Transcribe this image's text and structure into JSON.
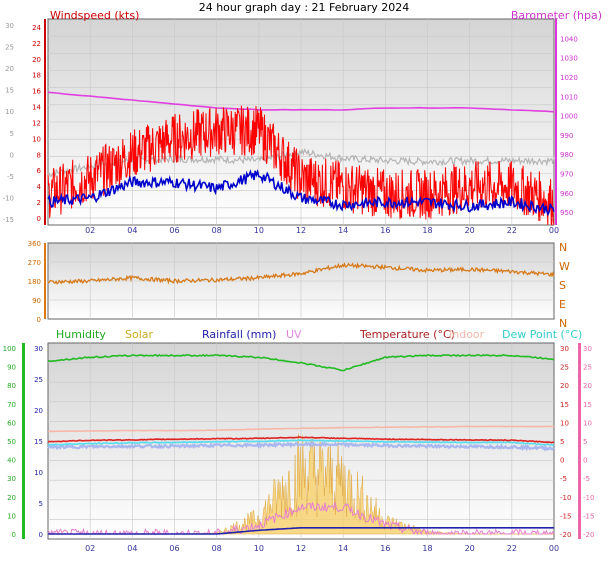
{
  "page_title": "24 hour graph day : 21 February 2024",
  "colors": {
    "wind": "#ff0000",
    "wind_avg": "#0000cc",
    "gust_shadow": "#b4b4b4",
    "baro": "#e040e0",
    "dir": "#d77a1a",
    "humidity": "#22bb22",
    "temp": "#dd2222",
    "indoor": "#f5b7a8",
    "dew": "#55ddee",
    "temp_band": "#aab8f0",
    "rain": "#2222aa",
    "solar": "#f5cf6a",
    "uv": "#e77fd0"
  },
  "chart_data": [
    {
      "type": "line",
      "title": "Windspeed (kts)",
      "y2label": "Barometer (hpa)",
      "x_ticks": [
        "02",
        "04",
        "06",
        "08",
        "10",
        "12",
        "14",
        "16",
        "18",
        "20",
        "22",
        "00"
      ],
      "y_left_outer_ticks": [
        "30",
        "25",
        "20",
        "15",
        "10",
        "5",
        "0",
        "-5",
        "-10",
        "-15"
      ],
      "y_left_ticks": [
        "24",
        "22",
        "20",
        "18",
        "16",
        "14",
        "12",
        "10",
        "8",
        "6",
        "4",
        "2",
        "0"
      ],
      "y_right_ticks": [
        "1040",
        "1030",
        "1020",
        "1010",
        "1000",
        "990",
        "980",
        "970",
        "960",
        "950"
      ],
      "ylim": [
        0,
        25
      ],
      "y2lim": [
        947,
        1050
      ],
      "x": [
        0,
        2,
        4,
        6,
        8,
        10,
        12,
        14,
        16,
        18,
        20,
        22,
        24
      ],
      "series": [
        {
          "key": "wind",
          "values": [
            3,
            5,
            8,
            10,
            11,
            11,
            5,
            4,
            3,
            3,
            4,
            4,
            2
          ]
        },
        {
          "key": "wind_avg",
          "values": [
            2,
            2.5,
            4.5,
            4.5,
            3.7,
            5.5,
            2.5,
            1.7,
            2,
            2,
            1.5,
            2,
            1
          ]
        },
        {
          "key": "gust_shadow",
          "values": [
            5.5,
            6.5,
            7.3,
            7.4,
            7.4,
            7.2,
            8.3,
            7.5,
            7.2,
            7.1,
            7.2,
            7.2,
            7.2
          ]
        },
        {
          "key": "baro",
          "values": [
            1012,
            1010,
            1008,
            1006,
            1004,
            1003,
            1003,
            1003,
            1004,
            1004,
            1004,
            1003,
            1002
          ]
        }
      ]
    },
    {
      "type": "line",
      "y_left_ticks": [
        "360",
        "270",
        "180",
        "90",
        "0"
      ],
      "compass_labels": [
        "N",
        "W",
        "S",
        "E",
        "N"
      ],
      "ylim": [
        0,
        360
      ],
      "x": [
        0,
        2,
        4,
        6,
        8,
        10,
        12,
        14,
        16,
        18,
        20,
        22,
        24
      ],
      "series": [
        {
          "key": "dir",
          "values": [
            175,
            180,
            195,
            180,
            185,
            195,
            215,
            255,
            245,
            230,
            235,
            225,
            210
          ]
        }
      ]
    },
    {
      "type": "line",
      "legend": [
        "Humidity",
        "Solar",
        "Rainfall (mm)",
        "UV",
        "Temperature (°C)",
        "Indoor",
        "Dew Point (°C)"
      ],
      "x_ticks": [
        "02",
        "04",
        "06",
        "08",
        "10",
        "12",
        "14",
        "16",
        "18",
        "20",
        "22",
        "00"
      ],
      "y_humidity_ticks": [
        "100",
        "90",
        "80",
        "70",
        "60",
        "50",
        "40",
        "30",
        "20",
        "10",
        "0"
      ],
      "y_rain_ticks": [
        "30",
        "25",
        "20",
        "15",
        "10",
        "5",
        "0"
      ],
      "y_temp_ticks": [
        "30",
        "25",
        "20",
        "15",
        "10",
        "5",
        "0",
        "-5",
        "-10",
        "-15",
        "-20"
      ],
      "templim": [
        -20,
        30
      ],
      "x": [
        0,
        2,
        4,
        6,
        8,
        10,
        12,
        14,
        16,
        18,
        20,
        22,
        24
      ],
      "series": [
        {
          "key": "humidity",
          "values": [
            93,
            95,
            96,
            96,
            96,
            95,
            92,
            88,
            95,
            96,
            96,
            96,
            94
          ]
        },
        {
          "key": "temp",
          "values": [
            4.8,
            5.2,
            5.3,
            5.5,
            5.6,
            5.7,
            6,
            5.7,
            5.5,
            5.4,
            5.3,
            5.2,
            4.6
          ]
        },
        {
          "key": "indoor",
          "values": [
            7.6,
            7.7,
            7.8,
            7.8,
            7.9,
            8.2,
            8.4,
            8.6,
            8.7,
            8.8,
            8.9,
            8.9,
            8.9
          ]
        },
        {
          "key": "dew",
          "values": [
            4,
            4.3,
            4.5,
            4.6,
            4.8,
            4.9,
            5.2,
            5,
            4.8,
            4.7,
            4.6,
            4.6,
            3.9
          ]
        },
        {
          "key": "temp_band",
          "values": [
            3.3,
            3.5,
            3.6,
            3.6,
            3.8,
            3.9,
            4.1,
            4,
            3.8,
            3.6,
            3.5,
            3.4,
            3
          ]
        },
        {
          "key": "solar",
          "values": [
            0,
            0,
            0,
            0,
            0.1,
            1.5,
            6,
            5,
            1.2,
            0.2,
            0,
            0,
            0
          ]
        },
        {
          "key": "uv",
          "values": [
            0,
            0,
            0,
            0,
            0,
            1,
            3,
            3,
            1,
            0,
            0,
            0,
            0
          ]
        },
        {
          "key": "rain",
          "values": [
            0,
            0,
            0,
            0,
            0,
            0.6,
            1,
            1,
            1,
            1,
            1,
            1,
            1
          ]
        }
      ]
    }
  ]
}
